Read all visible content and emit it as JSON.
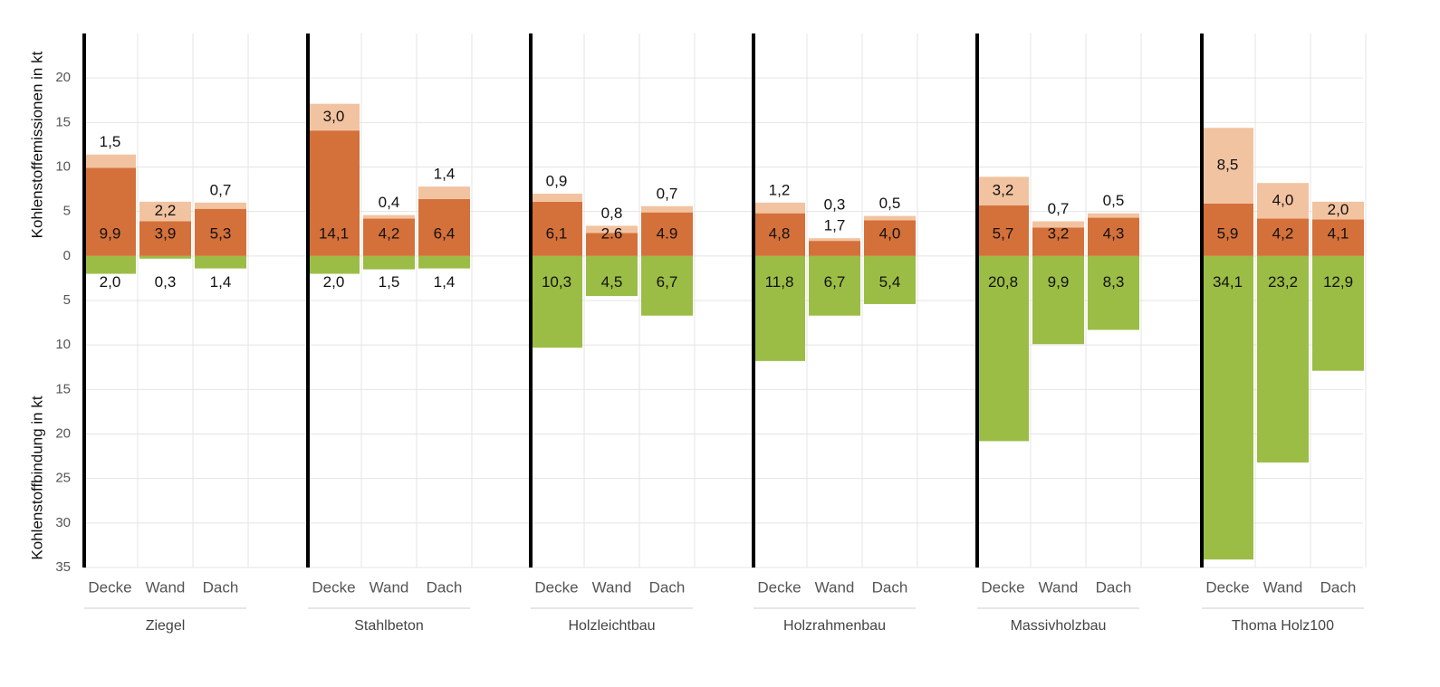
{
  "chart_data": {
    "type": "bar",
    "y_label_top": "Kohlenstoffemissionen in kt",
    "y_label_bottom": "Kohlenstoffbindung in kt",
    "groups": [
      "Ziegel",
      "Stahlbeton",
      "Holzleichtbau",
      "Holzrahmenbau",
      "Massivholzbau",
      "Thoma Holz100"
    ],
    "categories": [
      "Decke",
      "Wand",
      "Dach",
      "Decke",
      "Wand",
      "Dach",
      "Decke",
      "Wand",
      "Dach",
      "Decke",
      "Wand",
      "Dach",
      "Decke",
      "Wand",
      "Dach",
      "Decke",
      "Wand",
      "Dach"
    ],
    "series": [
      {
        "color": "#d4703a",
        "values": [
          9.9,
          3.9,
          5.3,
          14.1,
          4.2,
          6.4,
          6.1,
          2.6,
          4.9,
          4.8,
          1.7,
          4.0,
          5.7,
          3.2,
          4.3,
          5.9,
          4.2,
          4.1
        ],
        "value_labels": [
          "9,9",
          "3,9",
          "5,3",
          "14,1",
          "4,2",
          "6,4",
          "6,1",
          "2.6",
          "4.9",
          "4,8",
          "1,7",
          "4,0",
          "5,7",
          "3,2",
          "4,3",
          "5,9",
          "4,2",
          "4,1"
        ]
      },
      {
        "color": "#f2c3a0",
        "values": [
          1.5,
          2.2,
          0.7,
          3.0,
          0.4,
          1.4,
          0.9,
          0.8,
          0.7,
          1.2,
          0.3,
          0.5,
          3.2,
          0.7,
          0.5,
          8.5,
          4.0,
          2.0
        ],
        "value_labels": [
          "1,5",
          "2,2",
          "0,7",
          "3,0",
          "0,4",
          "1,4",
          "0,9",
          "0,8",
          "0,7",
          "1,2",
          "0,3",
          "0,5",
          "3,2",
          "0,7",
          "0,5",
          "8,5",
          "4,0",
          "2,0"
        ]
      },
      {
        "color": "#9cbd45",
        "values": [
          -2.0,
          -0.3,
          -1.4,
          -2.0,
          -1.5,
          -1.4,
          -10.3,
          -4.5,
          -6.7,
          -11.8,
          -6.7,
          -5.4,
          -20.8,
          -9.9,
          -8.3,
          -34.1,
          -23.2,
          -12.9
        ],
        "value_labels": [
          "2,0",
          "0,3",
          "1,4",
          "2,0",
          "1,5",
          "1,4",
          "10,3",
          "4,5",
          "6,7",
          "11,8",
          "6,7",
          "5,4",
          "20,8",
          "9,9",
          "8,3",
          "34,1",
          "23,2",
          "12,9"
        ]
      }
    ],
    "ylim": [
      -35,
      25
    ],
    "yticks": [
      {
        "value": -35,
        "label": "35"
      },
      {
        "value": -30,
        "label": "30"
      },
      {
        "value": -25,
        "label": "25"
      },
      {
        "value": -20,
        "label": "20"
      },
      {
        "value": -15,
        "label": "15"
      },
      {
        "value": -10,
        "label": "10"
      },
      {
        "value": -5,
        "label": "5"
      },
      0,
      5,
      10,
      15,
      20
    ],
    "grid": true
  }
}
